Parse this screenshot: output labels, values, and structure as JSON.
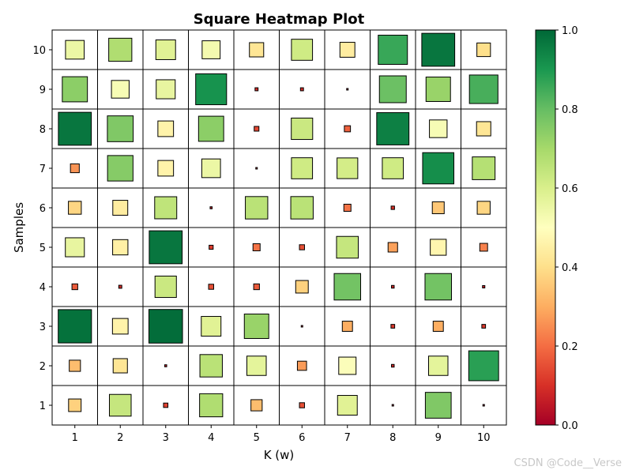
{
  "chart_data": {
    "type": "heatmap",
    "title": "Square Heatmap Plot",
    "xlabel": "K (w)",
    "ylabel": "Samples",
    "x_categories": [
      "1",
      "2",
      "3",
      "4",
      "5",
      "6",
      "7",
      "8",
      "9",
      "10"
    ],
    "y_categories": [
      "1",
      "2",
      "3",
      "4",
      "5",
      "6",
      "7",
      "8",
      "9",
      "10"
    ],
    "colormap": "RdYlGn",
    "color_range": [
      0,
      1
    ],
    "size_encodes_value": true,
    "colorbar": {
      "position": "right",
      "ticks": [
        "0.0",
        "0.2",
        "0.4",
        "0.6",
        "0.8",
        "1.0"
      ],
      "tick_values": [
        0,
        0.2,
        0.4,
        0.6,
        0.8,
        1.0
      ]
    },
    "grid": true,
    "rows": [
      {
        "sample": "10",
        "values": [
          0.55,
          0.68,
          0.58,
          0.53,
          0.42,
          0.62,
          0.44,
          0.86,
          0.97,
          0.4
        ]
      },
      {
        "sample": "9",
        "values": [
          0.74,
          0.52,
          0.56,
          0.91,
          0.09,
          0.09,
          0.03,
          0.79,
          0.72,
          0.84
        ]
      },
      {
        "sample": "8",
        "values": [
          0.97,
          0.76,
          0.46,
          0.74,
          0.14,
          0.63,
          0.18,
          0.95,
          0.52,
          0.42
        ]
      },
      {
        "sample": "7",
        "values": [
          0.26,
          0.75,
          0.46,
          0.55,
          0.03,
          0.62,
          0.61,
          0.62,
          0.92,
          0.67
        ]
      },
      {
        "sample": "6",
        "values": [
          0.38,
          0.44,
          0.65,
          0.06,
          0.66,
          0.66,
          0.21,
          0.1,
          0.35,
          0.38
        ]
      },
      {
        "sample": "5",
        "values": [
          0.56,
          0.45,
          0.97,
          0.12,
          0.21,
          0.15,
          0.64,
          0.28,
          0.47,
          0.23
        ]
      },
      {
        "sample": "4",
        "values": [
          0.17,
          0.09,
          0.63,
          0.15,
          0.17,
          0.37,
          0.78,
          0.08,
          0.78,
          0.07
        ]
      },
      {
        "sample": "3",
        "values": [
          0.98,
          0.46,
          0.99,
          0.58,
          0.72,
          0.04,
          0.3,
          0.11,
          0.3,
          0.11
        ]
      },
      {
        "sample": "2",
        "values": [
          0.33,
          0.42,
          0.06,
          0.66,
          0.57,
          0.27,
          0.51,
          0.08,
          0.57,
          0.88
        ]
      },
      {
        "sample": "1",
        "values": [
          0.37,
          0.64,
          0.13,
          0.68,
          0.33,
          0.15,
          0.58,
          0.02,
          0.76,
          0.01
        ]
      }
    ]
  },
  "watermark": "CSDN @Code__Verse"
}
